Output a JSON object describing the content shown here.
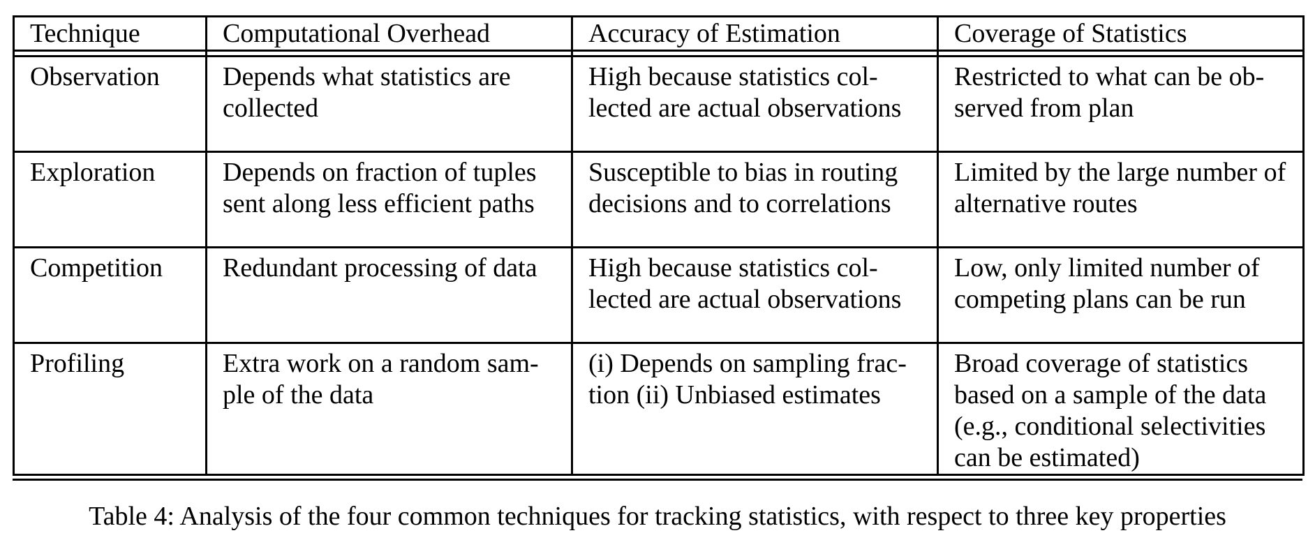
{
  "table": {
    "headers": [
      "Technique",
      "Computational Overhead",
      "Accuracy of Estimation",
      "Coverage of Statistics"
    ],
    "rows": [
      {
        "technique": "Observation",
        "overhead": "Depends what statistics are collected",
        "accuracy": "High because statistics col-lected are actual observations",
        "coverage": "Restricted to what can be ob-served from plan"
      },
      {
        "technique": "Exploration",
        "overhead": "Depends on fraction of tuples sent along less efficient paths",
        "accuracy": "Susceptible to bias in routing decisions and to correlations",
        "coverage": "Limited by the large number of alternative routes"
      },
      {
        "technique": "Competition",
        "overhead": "Redundant processing of data",
        "accuracy": "High because statistics col-lected are actual observations",
        "coverage": "Low, only limited number of competing plans can be run"
      },
      {
        "technique": "Profiling",
        "overhead": "Extra work on a random sam-ple of the data",
        "accuracy": "(i) Depends on sampling frac-tion (ii) Unbiased estimates",
        "coverage": "Broad coverage of statistics based on a sample of the data (e.g., conditional selectivities can be estimated)"
      }
    ]
  },
  "caption": "Table 4: Analysis of the four common techniques for tracking statistics, with respect to three key properties"
}
